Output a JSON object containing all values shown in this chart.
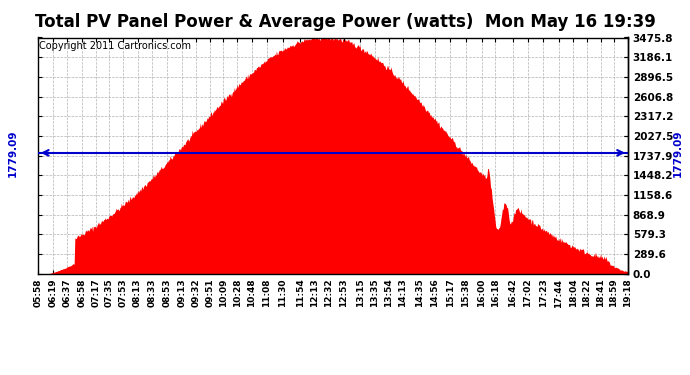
{
  "title": "Total PV Panel Power & Average Power (watts)  Mon May 16 19:39",
  "copyright": "Copyright 2011 Cartronics.com",
  "avg_power": 1779.09,
  "y_max": 3475.8,
  "y_ticks": [
    0.0,
    289.6,
    579.3,
    868.9,
    1158.6,
    1448.2,
    1737.9,
    2027.5,
    2317.2,
    2606.8,
    2896.5,
    3186.1,
    3475.8
  ],
  "x_labels": [
    "05:58",
    "06:19",
    "06:37",
    "06:58",
    "07:17",
    "07:35",
    "07:53",
    "08:13",
    "08:33",
    "08:53",
    "09:13",
    "09:32",
    "09:51",
    "10:09",
    "10:28",
    "10:48",
    "11:08",
    "11:30",
    "11:54",
    "12:13",
    "12:32",
    "12:53",
    "13:15",
    "13:35",
    "13:54",
    "14:13",
    "14:35",
    "14:56",
    "15:17",
    "15:38",
    "16:00",
    "16:18",
    "16:42",
    "17:02",
    "17:23",
    "17:44",
    "18:04",
    "18:22",
    "18:41",
    "18:59",
    "19:18"
  ],
  "fill_color": "#FF0000",
  "line_color": "#0000CC",
  "background_color": "#FFFFFF",
  "grid_color": "#AAAAAA",
  "title_fontsize": 12,
  "copyright_fontsize": 7,
  "tick_fontsize": 7.5,
  "x_tick_fontsize": 6.5
}
